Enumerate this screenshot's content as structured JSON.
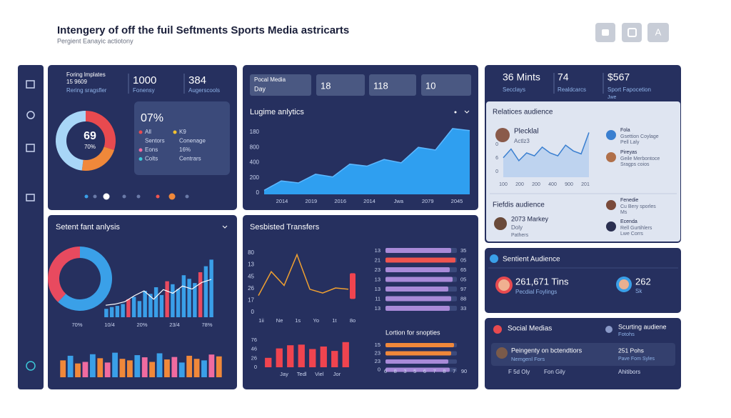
{
  "header": {
    "title": "Intengery of off the fuil Seftments Sports Media astricarts",
    "subtitle": "Pergient Eanayic actiotony",
    "button_label": "A"
  },
  "overview": {
    "stats": [
      {
        "label": "Foring lmplates",
        "value": "15 9609",
        "caption": "Rering sragsfler"
      },
      {
        "value": "1000",
        "caption": "Fonensy"
      },
      {
        "value": "384",
        "caption": "Augerscools"
      }
    ],
    "donut": {
      "center": "69",
      "center_sub": "70%",
      "values": [
        30,
        22,
        48
      ],
      "colors": [
        "#e84a4f",
        "#f0883a",
        "#a8d6f7"
      ]
    },
    "info": {
      "headline": "07%",
      "left": [
        {
          "label": "All",
          "color": "#e84a4f"
        },
        {
          "label": "Sentors"
        },
        {
          "label": "Eons",
          "color": "#f06ba0"
        },
        {
          "label": "Colts",
          "color": "#3cc8d8"
        }
      ],
      "right": [
        {
          "label": "K9",
          "color": "#f2c230"
        },
        {
          "label": "Conenage"
        },
        {
          "label": "16%"
        },
        {
          "label": "Centrars"
        }
      ]
    }
  },
  "analytics": {
    "tab_title": "Pocal Media",
    "tab_sub": "Day",
    "tabs": [
      "18",
      "118",
      "10"
    ],
    "title": "Lugime anlytics",
    "y_labels": [
      "180",
      "800",
      "400",
      "200",
      "0"
    ],
    "x_labels": [
      "2014",
      "2019",
      "2016",
      "2014",
      "Jwa",
      "2079",
      "2045"
    ],
    "values": [
      6,
      20,
      17,
      30,
      26,
      45,
      42,
      52,
      47,
      70,
      66,
      98,
      95
    ],
    "ylim": [
      0,
      100
    ],
    "color": "#2f9ff0"
  },
  "audience": {
    "stats": [
      {
        "value": "36 Mints",
        "caption": "Secclays"
      },
      {
        "value": "74",
        "caption": "Realdcarcs"
      },
      {
        "value": "$567",
        "caption": "Sport Fapocetion",
        "note": "Jwe"
      }
    ],
    "relatives": {
      "title": "Relatices audience",
      "name": "Plecklal",
      "sub": "Actlz3",
      "x_labels": [
        "100",
        "200",
        "200",
        "400",
        "900",
        "201"
      ],
      "y_labels": [
        "0",
        "6",
        "0"
      ],
      "values": [
        40,
        58,
        34,
        50,
        44,
        62,
        50,
        44,
        66,
        54,
        48,
        92
      ],
      "ylim": [
        0,
        100
      ],
      "color": "#3a7fd0",
      "people": [
        {
          "name": "Fola",
          "line1": "Gsettion Coylage",
          "line2": "Pell Laly"
        },
        {
          "name": "Pireyas",
          "line1": "Geile Merbontoce",
          "line2": "Sragps coios"
        }
      ]
    },
    "fields": {
      "title": "Fiefdis audience",
      "name": "2073 Markey",
      "line1": "Doly",
      "line2": "Pathers",
      "people": [
        {
          "name": "Fenedie",
          "line1": "Cu Bery sporles",
          "line2": "Ms"
        },
        {
          "name": "Ecenda",
          "line1": "Rell Gurtihlers",
          "line2": "Lwe Corrs"
        }
      ]
    }
  },
  "sentiment": {
    "title": "Setent fant anlysis",
    "donut": {
      "values": [
        62,
        38
      ],
      "colors": [
        "#3aa0e8",
        "#e84a5f"
      ]
    },
    "bars": {
      "values": [
        14,
        17,
        19,
        22,
        30,
        34,
        27,
        44,
        39,
        50,
        37,
        60,
        55,
        47,
        70,
        64,
        57,
        75,
        85,
        96
      ],
      "colors": [
        "#3a9fe8",
        "#3a9fe8",
        "#3a9fe8",
        "#3a9fe8",
        "#e84a5f",
        "#3a9fe8",
        "#3a9fe8",
        "#3a9fe8",
        "#3a9fe8",
        "#3a9fe8",
        "#3a9fe8",
        "#e84a5f",
        "#3a9fe8",
        "#3a9fe8",
        "#3a9fe8",
        "#3a9fe8",
        "#3a9fe8",
        "#e84a5f",
        "#3a9fe8",
        "#3a9fe8"
      ],
      "ylim": [
        0,
        100
      ]
    },
    "line": {
      "values": [
        20,
        22,
        26,
        36,
        44,
        30,
        46,
        40,
        52,
        47,
        58,
        63
      ],
      "ylim": [
        0,
        100
      ]
    },
    "x_labels": [
      "70%",
      "10/4",
      "20%",
      "23/4",
      "78%"
    ],
    "lower_bars": {
      "values": [
        55,
        70,
        45,
        50,
        75,
        62,
        48,
        80,
        60,
        55,
        72,
        65,
        50,
        78,
        58,
        66,
        48,
        70,
        60,
        55,
        74,
        68
      ],
      "colors": [
        "#f0883a",
        "#3a9fe8",
        "#f0883a",
        "#f06ba0",
        "#3a9fe8",
        "#f0883a",
        "#f06ba0",
        "#3a9fe8",
        "#f0883a",
        "#f0883a",
        "#3a9fe8",
        "#f06ba0",
        "#f0883a",
        "#3a9fe8",
        "#f0883a",
        "#f06ba0",
        "#3a9fe8",
        "#f0883a",
        "#f0883a",
        "#3a9fe8",
        "#f06ba0",
        "#f0883a"
      ],
      "ylim": [
        0,
        100
      ]
    }
  },
  "transfers": {
    "title": "Sesbisted Transfers",
    "line": {
      "values": [
        30,
        68,
        46,
        95,
        40,
        34,
        42,
        40
      ],
      "ylim": [
        0,
        100
      ],
      "color": "#f0a030",
      "y_labels": [
        "80",
        "13",
        "45",
        "26",
        "17",
        "0"
      ],
      "x_labels": [
        "1ii",
        "Ne",
        "1s",
        "Yo",
        "1t",
        "8o"
      ],
      "marker": 45
    },
    "hbars": {
      "values": [
        92,
        98,
        90,
        94,
        88,
        92,
        90
      ],
      "colors": [
        "#a98ad8",
        "#f0544f",
        "#a98ad8",
        "#a98ad8",
        "#a98ad8",
        "#a98ad8",
        "#a98ad8"
      ],
      "xlim": [
        0,
        100
      ],
      "left_labels": [
        "13",
        "21",
        "23",
        "13",
        "13",
        "11",
        "13"
      ],
      "right_labels": [
        "35",
        "05",
        "65",
        "05",
        "97",
        "88",
        "33"
      ]
    },
    "subtitle": "Lortion for snopties",
    "col_bars": {
      "values": [
        30,
        60,
        70,
        72,
        58,
        66,
        52,
        80
      ],
      "ylim": [
        0,
        100
      ],
      "color": "#f0444f",
      "y_labels": [
        "76",
        "46",
        "26",
        "0"
      ],
      "x_labels": [
        "Jay",
        "Tedl",
        "Viel",
        "Jor"
      ]
    },
    "lower_hbars": {
      "values": [
        96,
        92,
        88,
        90
      ],
      "colors": [
        "#f0883a",
        "#f0883a",
        "#a98ad8",
        "#a98ad8"
      ],
      "xlim": [
        0,
        100
      ],
      "left_labels": [
        "15",
        "23",
        "23",
        "0"
      ],
      "x_labels": [
        "6",
        "8",
        "3",
        "5",
        "6",
        "7",
        "8",
        "7",
        "90"
      ]
    }
  },
  "sentient": {
    "title": "Sentient Audience",
    "primary": "261,671 Tins",
    "primary_sub": "Pecdial Foylings",
    "secondary": "262",
    "secondary_sub": "Sk"
  },
  "social": {
    "title": "Social Medias",
    "side_title": "Scurting audiene",
    "side_sub": "Fotohs",
    "feature": "Peingenty on bctendtiors",
    "feature_sub": "Nemgenl Fors",
    "stat": "251 Pohs",
    "stat_sub": "Pave Fom Syles",
    "footer": [
      "F 5d Oly",
      "Fon Gily",
      "Ahitibors"
    ]
  }
}
